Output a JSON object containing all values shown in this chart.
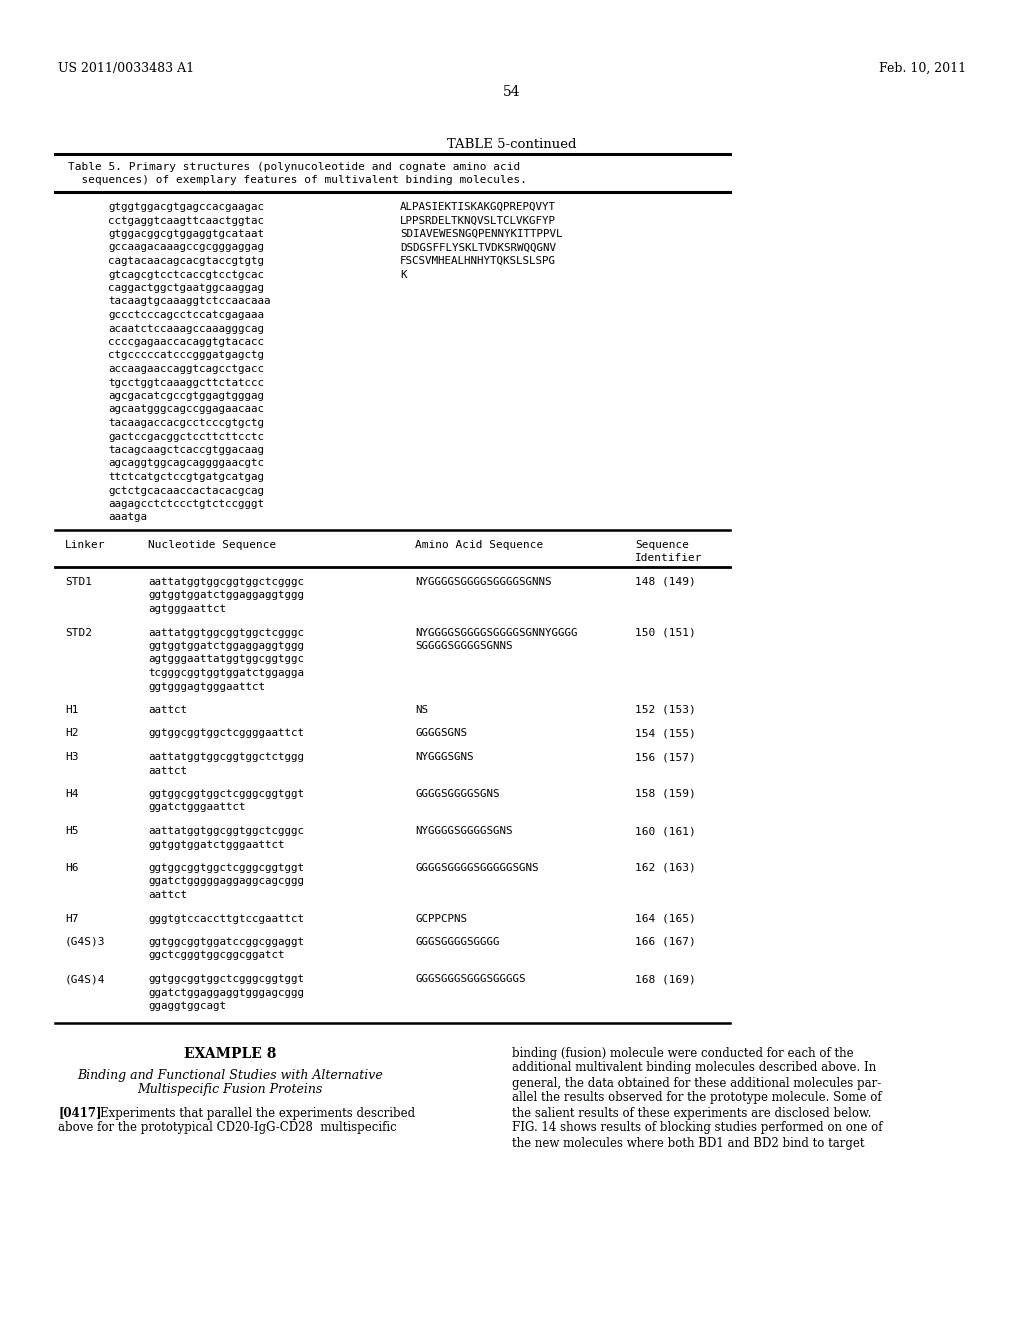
{
  "patent_number": "US 2011/0033483 A1",
  "date": "Feb. 10, 2011",
  "page_number": "54",
  "table_title": "TABLE 5-continued",
  "table_caption_line1": "Table 5. Primary structures (polynucoleotide and cognate amino acid",
  "table_caption_line2": "  sequences) of exemplary features of multivalent binding molecules.",
  "top_seq_dna": [
    "gtggtggacgtgagccacgaagac",
    "cctgaggtcaagttcaactggtac",
    "gtggacggcgtggaggtgcataat",
    "gccaagacaaagccgcgggaggag",
    "cagtacaacagcacgtaccgtgtg",
    "gtcagcgtcctcaccgtcctgcac",
    "caggactggctgaatggcaaggag",
    "tacaagtgcaaaggtctccaacaaa",
    "gccctcccagcctccatcgagaaa",
    "acaatctccaaagccaaagggcag",
    "ccccgagaaccacaggtgtacacc",
    "ctgcccccatcccgggatgagctg",
    "accaagaaccaggtcagcctgacc",
    "tgcctggtcaaaggcttctatccc",
    "agcgacatcgccgtggagtgggag",
    "agcaatgggcagccggagaacaac",
    "tacaagaccacgcctcccgtgctg",
    "gactccgacggctccttcttcctc",
    "tacagcaagctcaccgtggacaag",
    "agcaggtggcagcaggggaacgtc",
    "ttctcatgctccgtgatgcatgag",
    "gctctgcacaaccactacacgcag",
    "aagagcctctccctgtctccgggt",
    "aaatga"
  ],
  "top_seq_aa": [
    "ALPASIEKTISKAKGQPREPQVYT",
    "LPPSRDELTKNQVSLTCLVKGFYP",
    "SDIAVEWESNGQPENNYKITTPPVL",
    "DSDGSFFLYSKLTVDKSRWQQGNV",
    "FSCSVMHEALHNHYTQKSLSLSPG",
    "K"
  ],
  "table_rows": [
    {
      "linker": "STD1",
      "nuc": [
        "aattatggtggcggtggctcgggc",
        "ggtggtggatctggaggaggtggg",
        "agtgggaattct"
      ],
      "aa": [
        "NYGGGGSGGGGSGGGGSGNNS"
      ],
      "seq": "148 (149)"
    },
    {
      "linker": "STD2",
      "nuc": [
        "aattatggtggcggtggctcgggc",
        "ggtggtggatctggaggaggtggg",
        "agtgggaattatggtggcggtggc",
        "tcgggcggtggtggatctggagga",
        "ggtgggagtgggaattct"
      ],
      "aa": [
        "NYGGGGSGGGGSGGGGSGNNYGGGG",
        "SGGGGSGGGGSGNNS"
      ],
      "seq": "150 (151)"
    },
    {
      "linker": "H1",
      "nuc": [
        "aattct"
      ],
      "aa": [
        "NS"
      ],
      "seq": "152 (153)"
    },
    {
      "linker": "H2",
      "nuc": [
        "ggtggcggtggctcggggaattct"
      ],
      "aa": [
        "GGGGSGNS"
      ],
      "seq": "154 (155)"
    },
    {
      "linker": "H3",
      "nuc": [
        "aattatggtggcggtggctctggg",
        "aattct"
      ],
      "aa": [
        "NYGGGSGNS"
      ],
      "seq": "156 (157)"
    },
    {
      "linker": "H4",
      "nuc": [
        "ggtggcggtggctcgggcggtggt",
        "ggatctgggaattct"
      ],
      "aa": [
        "GGGGSGGGGSGNS"
      ],
      "seq": "158 (159)"
    },
    {
      "linker": "H5",
      "nuc": [
        "aattatggtggcggtggctcgggc",
        "ggtggtggatctgggaattct"
      ],
      "aa": [
        "NYGGGGSGGGGSGNS"
      ],
      "seq": "160 (161)"
    },
    {
      "linker": "H6",
      "nuc": [
        "ggtggcggtggctcgggcggtggt",
        "ggatctgggggaggaggcagcggg",
        "aattct"
      ],
      "aa": [
        "GGGGSGGGGSGGGGGSGNS"
      ],
      "seq": "162 (163)"
    },
    {
      "linker": "H7",
      "nuc": [
        "gggtgtccaccttgtccgaattct"
      ],
      "aa": [
        "GCPPCPNS"
      ],
      "seq": "164 (165)"
    },
    {
      "linker": "(G4S)3",
      "nuc": [
        "ggtggcggtggatccggcggaggt",
        "ggctcgggtggcggcggatct"
      ],
      "aa": [
        "GGGSGGGGSGGGG"
      ],
      "seq": "166 (167)"
    },
    {
      "linker": "(G4S)4",
      "nuc": [
        "ggtggcggtggctcgggcggtggt",
        "ggatctggaggaggtgggagcggg",
        "ggaggtggcagt"
      ],
      "aa": [
        "GGGSGGGSGGGSGGGGS"
      ],
      "seq": "168 (169)"
    }
  ],
  "example_title": "EXAMPLE 8",
  "example_subtitle_lines": [
    "Binding and Functional Studies with Alternative",
    "Multispecific Fusion Proteins"
  ],
  "paragraph_num": "[0417]",
  "left_col_para": [
    "Experiments that parallel the experiments described",
    "above for the prototypical CD20-IgG-CD28  multispecific"
  ],
  "right_col_para": [
    "binding (fusion) molecule were conducted for each of the",
    "additional multivalent binding molecules described above. In",
    "general, the data obtained for these additional molecules par-",
    "allel the results observed for the prototype molecule. Some of",
    "the salient results of these experiments are disclosed below.",
    "FIG. 14 shows results of blocking studies performed on one of",
    "the new molecules where both BD1 and BD2 bind to target"
  ]
}
